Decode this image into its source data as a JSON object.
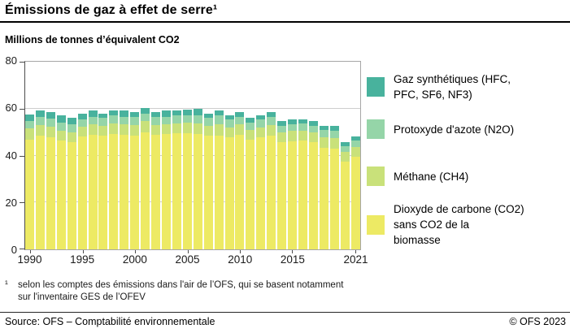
{
  "header": {
    "title": "Émissions de gaz à effet de serre¹",
    "subtitle": "Millions de tonnes d’équivalent CO2"
  },
  "chart_data": {
    "type": "bar",
    "stacked": true,
    "title": "Émissions de gaz à effet de serre",
    "ylabel": "Millions de tonnes d’équivalent CO2",
    "ylim": [
      0,
      80
    ],
    "yticks": [
      0,
      20,
      40,
      60,
      80
    ],
    "grid": true,
    "legend_position": "right",
    "years": [
      1990,
      1991,
      1992,
      1993,
      1994,
      1995,
      1996,
      1997,
      1998,
      1999,
      2000,
      2001,
      2002,
      2003,
      2004,
      2005,
      2006,
      2007,
      2008,
      2009,
      2010,
      2011,
      2012,
      2013,
      2014,
      2015,
      2016,
      2017,
      2018,
      2019,
      2020,
      2021
    ],
    "xticks": [
      {
        "label": "1990",
        "index": 0
      },
      {
        "label": "1995",
        "index": 5
      },
      {
        "label": "2000",
        "index": 10
      },
      {
        "label": "2005",
        "index": 15
      },
      {
        "label": "2010",
        "index": 20
      },
      {
        "label": "2015",
        "index": 25
      },
      {
        "label": "2021",
        "index": 31
      }
    ],
    "series": [
      {
        "name": "Dioxyde de carbone (CO2) sans CO2 de la biomasse",
        "color": "#EDEA64",
        "values": [
          46.7,
          48.4,
          47.7,
          46.4,
          45.7,
          48.1,
          48.8,
          48.4,
          49.1,
          48.8,
          48.4,
          49.8,
          48.8,
          49.1,
          49.4,
          49.4,
          49.1,
          48.4,
          48.4,
          47.7,
          48.8,
          46.7,
          47.7,
          48.4,
          45.7,
          46.0,
          46.4,
          45.7,
          43.3,
          42.9,
          37.4,
          39.5
        ]
      },
      {
        "name": "Méthane (CH4)",
        "color": "#C9E17A",
        "values": [
          4.8,
          4.5,
          4.5,
          4.1,
          4.1,
          4.1,
          4.4,
          4.1,
          4.5,
          4.4,
          4.5,
          4.8,
          4.1,
          4.1,
          4.2,
          4.5,
          4.5,
          4.1,
          4.8,
          4.1,
          4.4,
          4.1,
          4.1,
          4.5,
          4.1,
          4.5,
          4.1,
          4.1,
          4.4,
          4.5,
          4.1,
          4.1
        ]
      },
      {
        "name": "Protoxyde d'azote (N2O)",
        "color": "#95D5A8",
        "values": [
          3.1,
          3.4,
          3.4,
          3.4,
          3.4,
          3.1,
          3.4,
          3.5,
          3.4,
          3.4,
          3.4,
          3.4,
          3.4,
          3.4,
          3.4,
          3.4,
          3.7,
          3.5,
          3.8,
          3.5,
          3.4,
          3.1,
          3.5,
          3.4,
          2.7,
          2.7,
          3.1,
          2.7,
          3.1,
          3.1,
          2.5,
          2.8
        ]
      },
      {
        "name": "Gaz synthétiques (HFC, PFC, SF6, NF3)",
        "color": "#48B29D",
        "values": [
          2.8,
          2.8,
          3.1,
          3.1,
          2.8,
          2.4,
          2.5,
          2.0,
          2.4,
          2.8,
          2.3,
          2.4,
          2.1,
          2.5,
          2.4,
          2.4,
          2.7,
          2.0,
          2.4,
          2.0,
          2.1,
          2.1,
          2.0,
          2.1,
          2.1,
          2.1,
          2.0,
          2.1,
          1.7,
          2.0,
          1.7,
          1.7
        ]
      }
    ]
  },
  "legend": {
    "items": [
      {
        "color": "#48B29D",
        "lines": [
          "Gaz synthétiques (HFC,",
          "PFC, SF6, NF3)"
        ]
      },
      {
        "color": "#95D5A8",
        "lines": [
          "Protoxyde d'azote (N2O)"
        ]
      },
      {
        "color": "#C9E17A",
        "lines": [
          "Méthane (CH4)"
        ]
      },
      {
        "color": "#EDEA64",
        "lines": [
          "Dioxyde de carbone (CO2)",
          "sans CO2 de la",
          "biomasse"
        ]
      }
    ]
  },
  "footnote": {
    "marker": "¹",
    "lines": [
      "selon les comptes des émissions dans l'air de l’OFS, qui se basent notamment",
      "sur l'inventaire GES de l’OFEV"
    ]
  },
  "footer": {
    "source": "Source: OFS – Comptabilité environnementale",
    "copyright": "© OFS 2023"
  }
}
